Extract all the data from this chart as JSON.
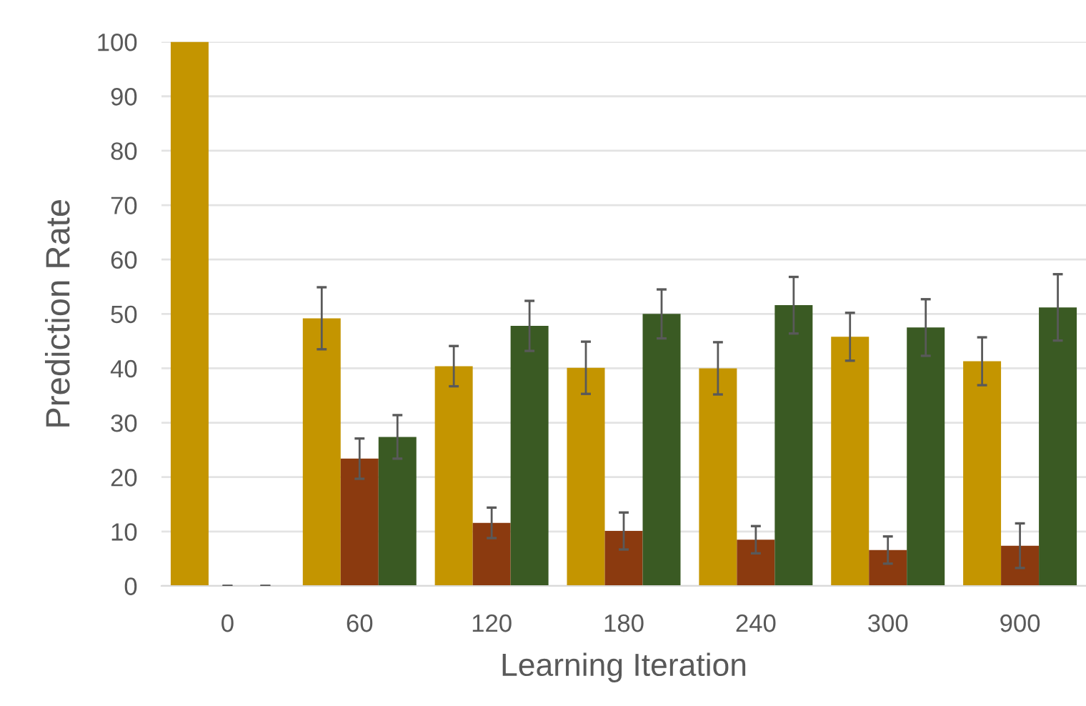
{
  "chart_data": {
    "type": "bar",
    "xlabel": "Learning Iteration",
    "ylabel": "Prediction Rate",
    "categories": [
      "0",
      "60",
      "120",
      "180",
      "240",
      "300",
      "900"
    ],
    "series": [
      {
        "color": "#c49500",
        "values": [
          100,
          49.2,
          40.4,
          40.1,
          40.0,
          45.8,
          41.3
        ],
        "errors": [
          null,
          5.7,
          3.7,
          4.8,
          4.8,
          4.4,
          4.4
        ]
      },
      {
        "color": "#8b3a0f",
        "values": [
          0,
          23.4,
          11.6,
          10.1,
          8.5,
          6.6,
          7.4
        ],
        "errors": [
          0,
          3.7,
          2.8,
          3.4,
          2.5,
          2.5,
          4.1
        ]
      },
      {
        "color": "#3a5a23",
        "values": [
          0,
          27.4,
          47.8,
          50.0,
          51.6,
          47.5,
          51.2
        ],
        "errors": [
          0,
          4.0,
          4.6,
          4.5,
          5.2,
          5.2,
          6.1
        ]
      }
    ],
    "ylim": [
      0,
      100
    ],
    "yticks": [
      0,
      10,
      20,
      30,
      40,
      50,
      60,
      70,
      80,
      90,
      100
    ],
    "grid": "y",
    "legend": false
  }
}
